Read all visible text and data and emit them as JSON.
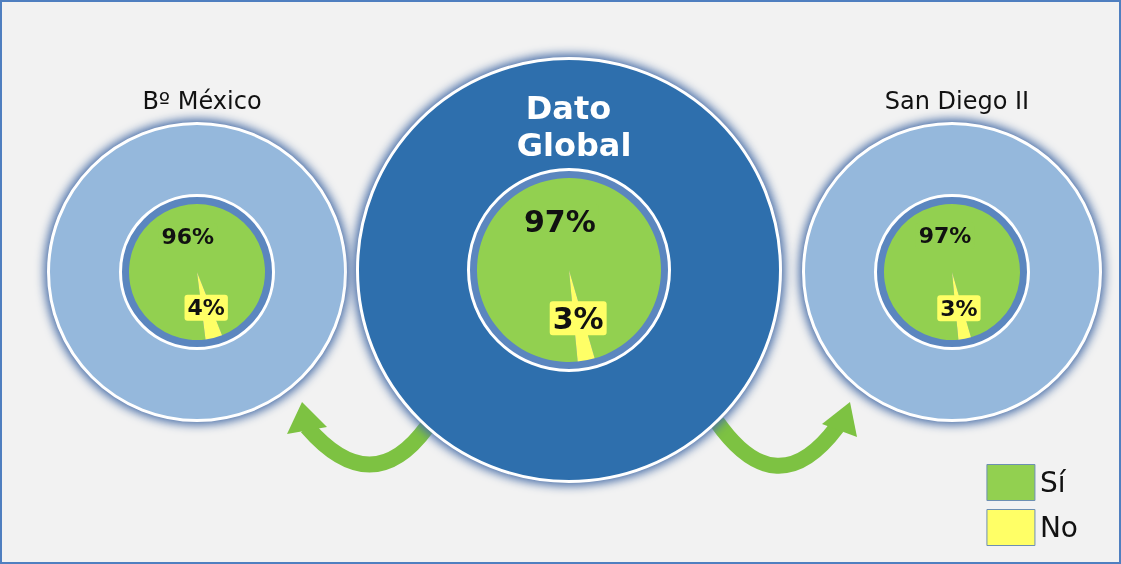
{
  "chart_data": {
    "type": "pie",
    "categories": [
      "Sí",
      "No"
    ],
    "colors": [
      "#92d050",
      "#ffff66"
    ],
    "legend": "bottom right",
    "series": [
      {
        "name": "Bº México",
        "values": [
          96,
          4
        ],
        "value_labels": [
          "96%",
          "4%"
        ]
      },
      {
        "name": "Dato Global",
        "values": [
          97,
          3
        ],
        "value_labels": [
          "97%",
          "3%"
        ]
      },
      {
        "name": "San Diego II",
        "values": [
          97,
          3
        ],
        "value_labels": [
          "97%",
          "3%"
        ]
      }
    ]
  }
}
